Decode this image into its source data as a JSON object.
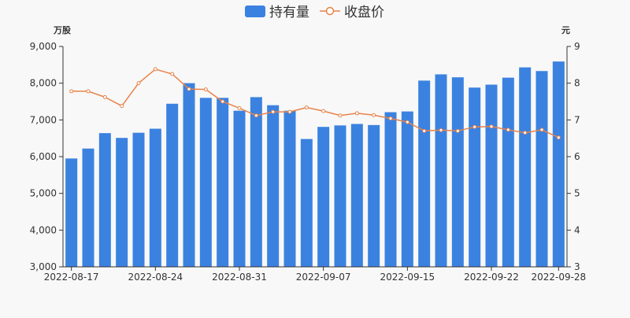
{
  "chart_data": {
    "type": "bar",
    "dates": [
      "2022-08-17",
      "2022-08-18",
      "2022-08-19",
      "2022-08-22",
      "2022-08-23",
      "2022-08-24",
      "2022-08-25",
      "2022-08-26",
      "2022-08-29",
      "2022-08-30",
      "2022-08-31",
      "2022-09-01",
      "2022-09-02",
      "2022-09-05",
      "2022-09-06",
      "2022-09-07",
      "2022-09-08",
      "2022-09-09",
      "2022-09-13",
      "2022-09-14",
      "2022-09-15",
      "2022-09-16",
      "2022-09-19",
      "2022-09-20",
      "2022-09-21",
      "2022-09-22",
      "2022-09-23",
      "2022-09-26",
      "2022-09-27",
      "2022-09-28"
    ],
    "x_tick_labels": [
      "2022-08-17",
      "2022-08-24",
      "2022-08-31",
      "2022-09-07",
      "2022-09-15",
      "2022-09-22",
      "2022-09-28"
    ],
    "series": [
      {
        "name": "持有量",
        "type": "bar",
        "axis": "left",
        "color": "#3b82e0",
        "values": [
          5950,
          6220,
          6640,
          6510,
          6650,
          6760,
          7440,
          8000,
          7600,
          7600,
          7250,
          7620,
          7400,
          7250,
          6480,
          6810,
          6850,
          6890,
          6860,
          7210,
          7230,
          8070,
          8240,
          8160,
          7880,
          7960,
          8150,
          8430,
          8330,
          8590
        ]
      },
      {
        "name": "收盘价",
        "type": "line",
        "axis": "right",
        "color": "#e8834a",
        "values": [
          7.78,
          7.78,
          7.62,
          7.38,
          8.0,
          8.38,
          8.25,
          7.84,
          7.83,
          7.5,
          7.32,
          7.12,
          7.22,
          7.22,
          7.34,
          7.24,
          7.12,
          7.18,
          7.13,
          7.04,
          6.94,
          6.7,
          6.72,
          6.7,
          6.81,
          6.82,
          6.73,
          6.65,
          6.73,
          6.52
        ]
      }
    ],
    "y_left": {
      "unit_label": "万股",
      "min": 3000,
      "max": 9000,
      "ticks": [
        "3,000",
        "4,000",
        "5,000",
        "6,000",
        "7,000",
        "8,000",
        "9,000"
      ]
    },
    "y_right": {
      "unit_label": "元",
      "min": 3,
      "max": 9,
      "ticks": [
        "3",
        "4",
        "5",
        "6",
        "7",
        "8",
        "9"
      ]
    },
    "legend_position": "top-center",
    "grid": false
  }
}
